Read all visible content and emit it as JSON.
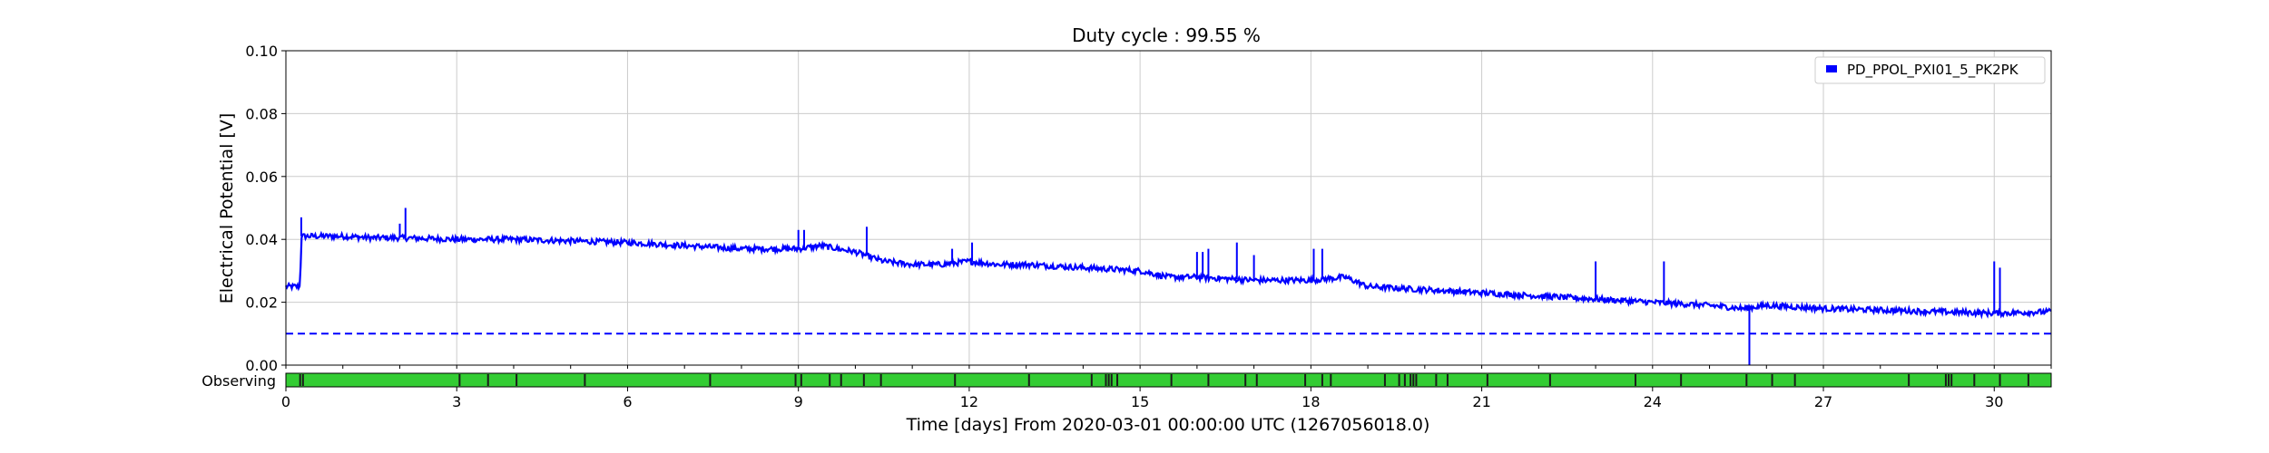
{
  "chart_data": {
    "type": "line",
    "title": "Duty cycle : 99.55 %",
    "xlabel": "Time [days] From 2020-03-01 00:00:00 UTC (1267056018.0)",
    "ylabel": "Electrical Potential [V]",
    "xlim": [
      0,
      31
    ],
    "ylim": [
      0,
      0.1
    ],
    "xticks": [
      0,
      3,
      6,
      9,
      12,
      15,
      18,
      21,
      24,
      27,
      30
    ],
    "xtick_labels": [
      "0",
      "3",
      "6",
      "9",
      "12",
      "15",
      "18",
      "21",
      "24",
      "27",
      "30"
    ],
    "yticks": [
      0,
      0.02,
      0.04,
      0.06,
      0.08,
      0.1
    ],
    "ytick_labels": [
      "0.00",
      "0.02",
      "0.04",
      "0.06",
      "0.08",
      "0.10"
    ],
    "grid": true,
    "legend_position": "top-right",
    "series": [
      {
        "name": "PD_PPOL_PXI01_5_PK2PK",
        "color": "#0000ff",
        "style": "solid",
        "x": [
          0,
          0.25,
          0.27,
          0.3,
          0.6,
          1,
          1.5,
          2,
          3,
          4,
          5,
          6,
          7,
          8,
          8.5,
          9,
          9.4,
          10,
          10.5,
          11,
          11.5,
          12,
          12.5,
          13,
          14,
          15,
          15.5,
          16,
          17,
          18,
          18.6,
          19,
          20,
          21,
          22,
          23,
          24,
          25,
          25.6,
          26,
          27,
          28,
          29,
          30,
          31
        ],
        "y": [
          0.025,
          0.025,
          0.041,
          0.041,
          0.041,
          0.041,
          0.0405,
          0.0405,
          0.04,
          0.04,
          0.0395,
          0.039,
          0.038,
          0.037,
          0.037,
          0.037,
          0.038,
          0.036,
          0.033,
          0.032,
          0.032,
          0.033,
          0.032,
          0.032,
          0.031,
          0.03,
          0.028,
          0.028,
          0.027,
          0.027,
          0.028,
          0.025,
          0.024,
          0.023,
          0.022,
          0.021,
          0.02,
          0.019,
          0.018,
          0.019,
          0.018,
          0.0175,
          0.017,
          0.0165,
          0.017
        ],
        "spikes": [
          {
            "x": 0.27,
            "y": 0.047
          },
          {
            "x": 2.0,
            "y": 0.045
          },
          {
            "x": 2.1,
            "y": 0.05
          },
          {
            "x": 9.0,
            "y": 0.043
          },
          {
            "x": 9.1,
            "y": 0.043
          },
          {
            "x": 10.2,
            "y": 0.044
          },
          {
            "x": 11.7,
            "y": 0.037
          },
          {
            "x": 12.05,
            "y": 0.039
          },
          {
            "x": 16.0,
            "y": 0.036
          },
          {
            "x": 16.1,
            "y": 0.036
          },
          {
            "x": 16.2,
            "y": 0.037
          },
          {
            "x": 16.7,
            "y": 0.039
          },
          {
            "x": 17.0,
            "y": 0.035
          },
          {
            "x": 18.05,
            "y": 0.037
          },
          {
            "x": 18.2,
            "y": 0.037
          },
          {
            "x": 23.0,
            "y": 0.033
          },
          {
            "x": 24.2,
            "y": 0.033
          },
          {
            "x": 30.0,
            "y": 0.033
          },
          {
            "x": 30.1,
            "y": 0.031
          }
        ],
        "dips": [
          {
            "x": 25.7,
            "y": 0.0
          }
        ]
      },
      {
        "color": "#0000ff",
        "style": "dashed",
        "x": [
          0,
          31
        ],
        "y": [
          0.01,
          0.01
        ]
      }
    ],
    "state_bar": {
      "label": "Observing",
      "color": "#33cc33",
      "gap_color": "#1a1a1a",
      "gaps": [
        0.25,
        0.3,
        3.05,
        3.55,
        4.05,
        5.25,
        7.45,
        8.95,
        9.05,
        9.55,
        9.75,
        10.15,
        10.45,
        11.75,
        13.05,
        14.15,
        14.4,
        14.45,
        14.5,
        14.6,
        15.55,
        16.2,
        16.85,
        17.05,
        17.9,
        18.2,
        18.35,
        19.3,
        19.55,
        19.65,
        19.75,
        19.8,
        19.85,
        20.2,
        20.4,
        21.1,
        22.2,
        23.7,
        24.5,
        25.65,
        26.1,
        26.5,
        28.5,
        29.15,
        29.2,
        29.25,
        29.65,
        30.1,
        30.6
      ]
    }
  }
}
